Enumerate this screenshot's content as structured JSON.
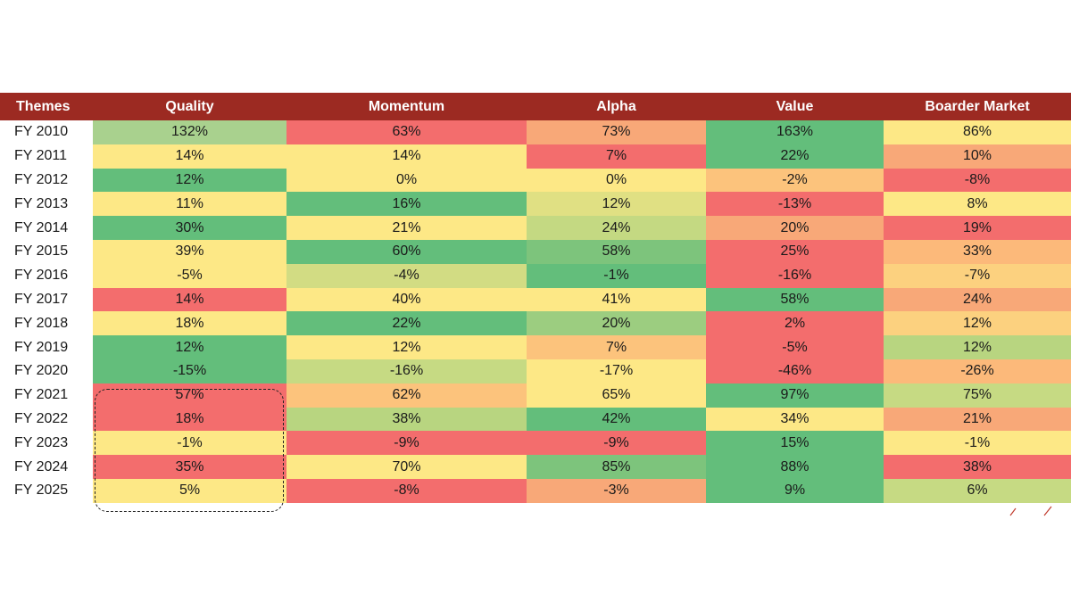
{
  "chart_data": {
    "type": "heatmap",
    "corner_label": "Themes",
    "columns": [
      "Quality",
      "Momentum",
      "Alpha",
      "Value",
      "Boarder Market"
    ],
    "rows": [
      "FY 2010",
      "FY 2011",
      "FY 2012",
      "FY 2013",
      "FY 2014",
      "FY 2015",
      "FY 2016",
      "FY 2017",
      "FY 2018",
      "FY 2019",
      "FY 2020",
      "FY 2021",
      "FY 2022",
      "FY 2023",
      "FY 2024",
      "FY 2025"
    ],
    "values": [
      [
        "132%",
        "63%",
        "73%",
        "163%",
        "86%"
      ],
      [
        "14%",
        "14%",
        "7%",
        "22%",
        "10%"
      ],
      [
        "12%",
        "0%",
        "0%",
        "-2%",
        "-8%"
      ],
      [
        "11%",
        "16%",
        "12%",
        "-13%",
        "8%"
      ],
      [
        "30%",
        "21%",
        "24%",
        "20%",
        "19%"
      ],
      [
        "39%",
        "60%",
        "58%",
        "25%",
        "33%"
      ],
      [
        "-5%",
        "-4%",
        "-1%",
        "-16%",
        "-7%"
      ],
      [
        "14%",
        "40%",
        "41%",
        "58%",
        "24%"
      ],
      [
        "18%",
        "22%",
        "20%",
        "2%",
        "12%"
      ],
      [
        "12%",
        "12%",
        "7%",
        "-5%",
        "12%"
      ],
      [
        "-15%",
        "-16%",
        "-17%",
        "-46%",
        "-26%"
      ],
      [
        "57%",
        "62%",
        "65%",
        "97%",
        "75%"
      ],
      [
        "18%",
        "38%",
        "42%",
        "34%",
        "21%"
      ],
      [
        "-1%",
        "-9%",
        "-9%",
        "15%",
        "-1%"
      ],
      [
        "35%",
        "70%",
        "85%",
        "88%",
        "38%"
      ],
      [
        "5%",
        "-8%",
        "-3%",
        "9%",
        "6%"
      ]
    ],
    "cell_colors": [
      [
        "#a9d18e",
        "#f36d6d",
        "#f8a878",
        "#63be7b",
        "#fde886"
      ],
      [
        "#fde886",
        "#fde886",
        "#f36d6d",
        "#63be7b",
        "#f8a878"
      ],
      [
        "#63be7b",
        "#fde886",
        "#fde886",
        "#fcc37c",
        "#f36d6d"
      ],
      [
        "#fde886",
        "#63be7b",
        "#e0e083",
        "#f36d6d",
        "#fde886"
      ],
      [
        "#63be7b",
        "#fde886",
        "#c4d982",
        "#f8a878",
        "#f36d6d"
      ],
      [
        "#fde886",
        "#63be7b",
        "#7dc47c",
        "#f36d6d",
        "#fcb97a"
      ],
      [
        "#fde886",
        "#d2dc83",
        "#63be7b",
        "#f36d6d",
        "#fcd17f"
      ],
      [
        "#f36d6d",
        "#fde886",
        "#fde886",
        "#63be7b",
        "#f8a878"
      ],
      [
        "#fde886",
        "#63be7b",
        "#9ccd80",
        "#f36d6d",
        "#fcd17f"
      ],
      [
        "#63be7b",
        "#fde886",
        "#fcc37c",
        "#f36d6d",
        "#b8d580"
      ],
      [
        "#63be7b",
        "#c6da83",
        "#fde886",
        "#f36d6d",
        "#fcb97a"
      ],
      [
        "#f36d6d",
        "#fcc37c",
        "#fde886",
        "#63be7b",
        "#c6da83"
      ],
      [
        "#f36d6d",
        "#b8d580",
        "#63be7b",
        "#fde886",
        "#f8a878"
      ],
      [
        "#fde886",
        "#f36d6d",
        "#f36d6d",
        "#63be7b",
        "#fde886"
      ],
      [
        "#f36d6d",
        "#fde886",
        "#7dc47c",
        "#63be7b",
        "#f36d6d"
      ],
      [
        "#fde886",
        "#f36d6d",
        "#f8a878",
        "#63be7b",
        "#c6da83"
      ]
    ],
    "highlight": {
      "column": "Quality",
      "rows": [
        "FY 2021",
        "FY 2022",
        "FY 2023",
        "FY 2024",
        "FY 2025"
      ]
    },
    "header_color": "#9c2a22"
  }
}
